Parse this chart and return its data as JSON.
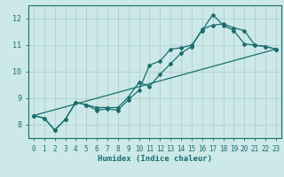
{
  "xlabel": "Humidex (Indice chaleur)",
  "bg_color": "#cce8e8",
  "line_color": "#1a6e6e",
  "grid_color": "#b0d0d0",
  "xlim": [
    -0.5,
    23.5
  ],
  "ylim": [
    7.5,
    12.5
  ],
  "yticks": [
    8,
    9,
    10,
    11,
    12
  ],
  "xticks": [
    0,
    1,
    2,
    3,
    4,
    5,
    6,
    7,
    8,
    9,
    10,
    11,
    12,
    13,
    14,
    15,
    16,
    17,
    18,
    19,
    20,
    21,
    22,
    23
  ],
  "line1_x": [
    0,
    1,
    2,
    3,
    4,
    5,
    6,
    7,
    8,
    9,
    10,
    11,
    12,
    13,
    14,
    15,
    16,
    17,
    18,
    19,
    20,
    21,
    22,
    23
  ],
  "line1_y": [
    8.35,
    8.25,
    7.8,
    8.2,
    8.85,
    8.75,
    8.55,
    8.6,
    8.55,
    8.95,
    9.3,
    10.25,
    10.4,
    10.85,
    10.9,
    11.0,
    11.55,
    12.15,
    11.75,
    11.55,
    11.05,
    11.0,
    10.95,
    10.85
  ],
  "line2_x": [
    0,
    1,
    2,
    3,
    4,
    5,
    6,
    7,
    8,
    9,
    10,
    11,
    12,
    13,
    14,
    15,
    16,
    17,
    18,
    19,
    20,
    21,
    22,
    23
  ],
  "line2_y": [
    8.35,
    8.25,
    7.8,
    8.2,
    8.85,
    8.75,
    8.65,
    8.65,
    8.65,
    9.05,
    9.6,
    9.45,
    9.9,
    10.3,
    10.7,
    10.95,
    11.6,
    11.75,
    11.8,
    11.65,
    11.55,
    11.0,
    10.95,
    10.85
  ],
  "line3_x": [
    0,
    23
  ],
  "line3_y": [
    8.35,
    10.85
  ],
  "tick_fontsize": 5.5,
  "xlabel_fontsize": 6.5,
  "marker_size": 2.0,
  "line_width": 0.9
}
